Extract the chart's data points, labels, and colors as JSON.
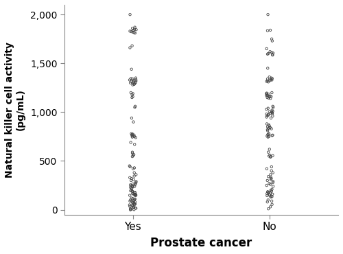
{
  "ylabel_line1": "Natural killer cell activity",
  "ylabel_line2": "(pg/mL)",
  "xlabel": "Prostate cancer",
  "categories": [
    "Yes",
    "No"
  ],
  "ylim": [
    -50,
    2100
  ],
  "yticks": [
    0,
    500,
    1000,
    1500,
    2000
  ],
  "ytick_labels": [
    "0",
    "500",
    "1,000",
    "1,500",
    "2,000"
  ],
  "background_color": "#ffffff",
  "dot_color": "none",
  "dot_edgecolor": "#444444",
  "dot_size": 6,
  "dot_linewidth": 0.6,
  "yes_values": [
    2000,
    1870,
    1860,
    1850,
    1845,
    1840,
    1835,
    1830,
    1825,
    1820,
    1815,
    1810,
    1680,
    1660,
    1440,
    1350,
    1345,
    1340,
    1335,
    1330,
    1325,
    1320,
    1315,
    1310,
    1305,
    1300,
    1295,
    1290,
    1285,
    1280,
    1200,
    1190,
    1180,
    1160,
    1150,
    1060,
    1050,
    940,
    900,
    780,
    775,
    770,
    765,
    760,
    755,
    750,
    745,
    740,
    690,
    670,
    590,
    580,
    565,
    555,
    545,
    450,
    440,
    430,
    420,
    380,
    360,
    345,
    330,
    320,
    310,
    300,
    290,
    280,
    270,
    265,
    260,
    255,
    250,
    245,
    240,
    235,
    230,
    225,
    220,
    200,
    195,
    190,
    185,
    180,
    175,
    170,
    165,
    160,
    158,
    155,
    152,
    150,
    148,
    145,
    120,
    115,
    110,
    105,
    100,
    95,
    90,
    85,
    80,
    75,
    70,
    65,
    60,
    55,
    50,
    45,
    40,
    35,
    30,
    25,
    20,
    15,
    10,
    5,
    2,
    0
  ],
  "no_values": [
    2000,
    1840,
    1835,
    1750,
    1730,
    1650,
    1620,
    1610,
    1605,
    1600,
    1595,
    1590,
    1585,
    1450,
    1360,
    1350,
    1345,
    1340,
    1335,
    1330,
    1325,
    1320,
    1315,
    1310,
    1200,
    1195,
    1190,
    1185,
    1180,
    1175,
    1170,
    1165,
    1160,
    1155,
    1150,
    1145,
    1140,
    1060,
    1050,
    1040,
    1030,
    1020,
    1010,
    1005,
    1000,
    995,
    990,
    985,
    980,
    975,
    970,
    965,
    960,
    950,
    940,
    880,
    870,
    860,
    850,
    845,
    840,
    835,
    830,
    820,
    810,
    780,
    775,
    770,
    765,
    760,
    755,
    750,
    745,
    620,
    590,
    560,
    555,
    550,
    545,
    540,
    440,
    420,
    400,
    380,
    360,
    340,
    330,
    320,
    310,
    300,
    290,
    280,
    270,
    260,
    250,
    240,
    210,
    200,
    190,
    185,
    180,
    175,
    170,
    165,
    160,
    155,
    150,
    145,
    140,
    135,
    130,
    100,
    90,
    80,
    55,
    30,
    10
  ],
  "jitter_strength": 0.025,
  "random_seed": 7
}
